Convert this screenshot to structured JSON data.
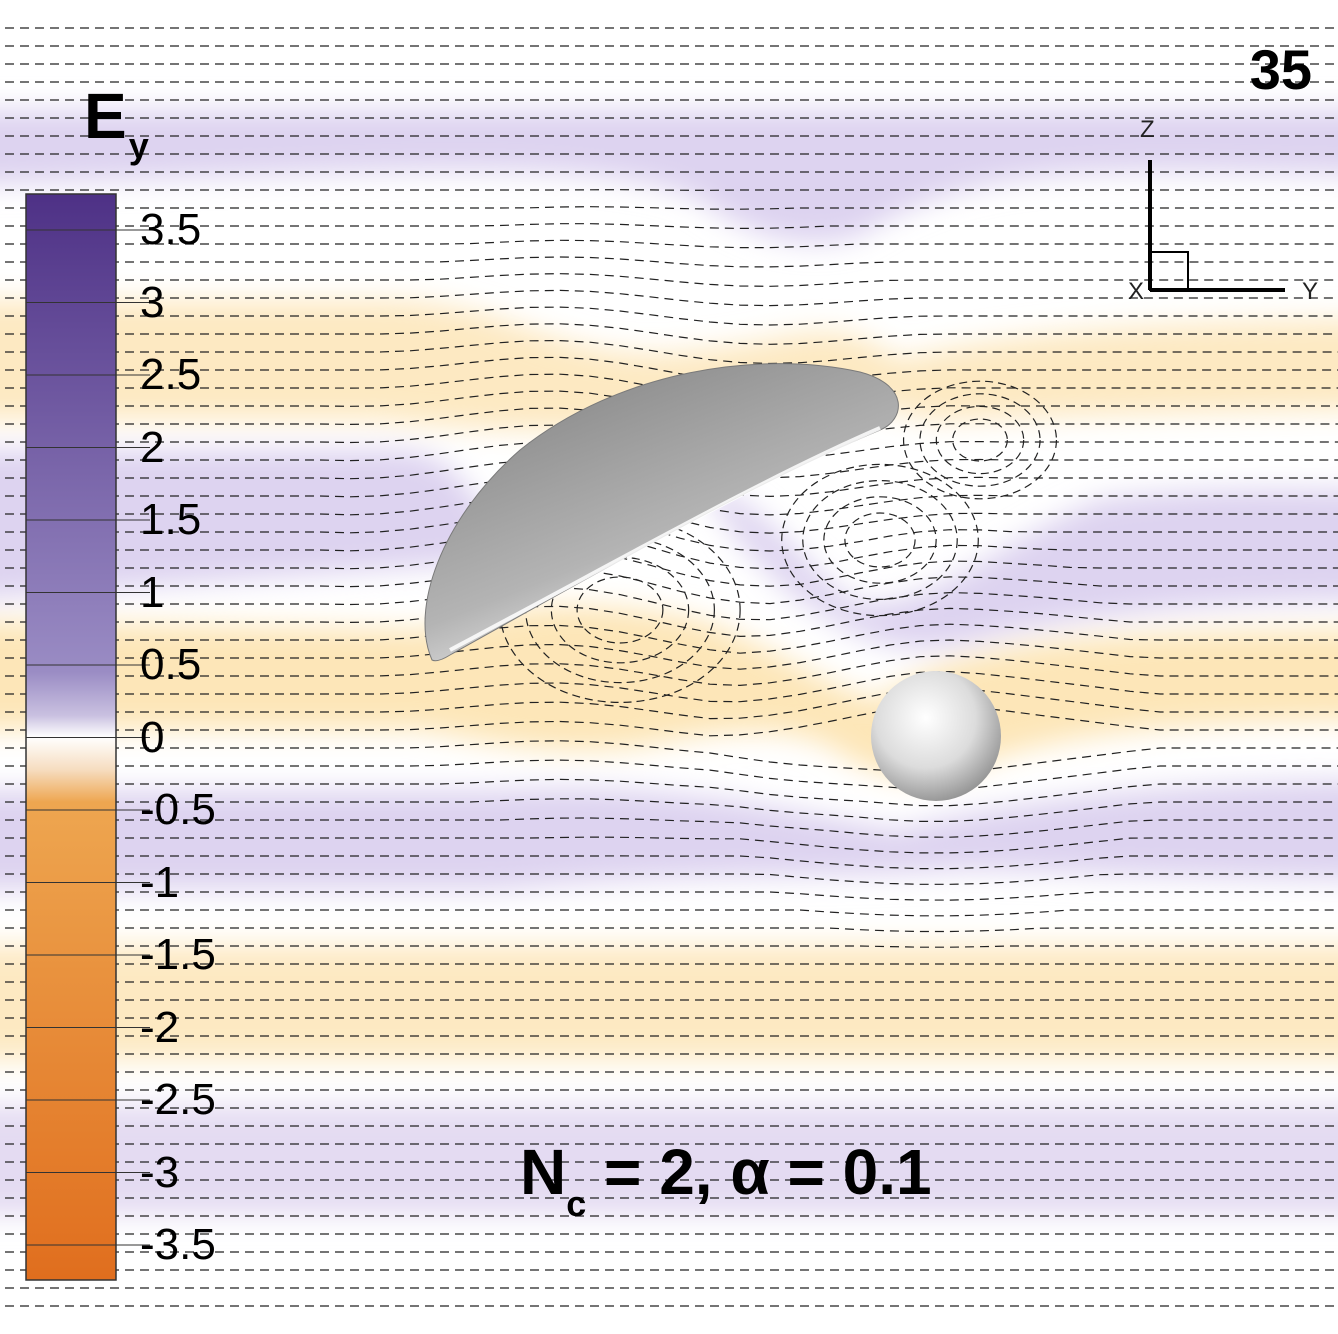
{
  "frame_number": "35",
  "colorbar": {
    "title_main": "E",
    "title_sub": "y",
    "ticks": [
      "3.5",
      "3",
      "2.5",
      "2",
      "1.5",
      "1",
      "0.5",
      "0",
      "-0.5",
      "-1",
      "-1.5",
      "-2",
      "-2.5",
      "-3",
      "-3.5"
    ],
    "range": [
      -3.5,
      3.5
    ],
    "colors": {
      "positive": "#5b3f8e",
      "zero": "#ffffff",
      "negative": "#e07823"
    }
  },
  "axes_triad": {
    "z": "Z",
    "x": "X",
    "y": "Y"
  },
  "params": {
    "n_main": "N",
    "n_sub": "c",
    "rest": " = 2, α = 0.1"
  },
  "objects": [
    "spheroidal-cap-particle",
    "sphere-particle"
  ]
}
